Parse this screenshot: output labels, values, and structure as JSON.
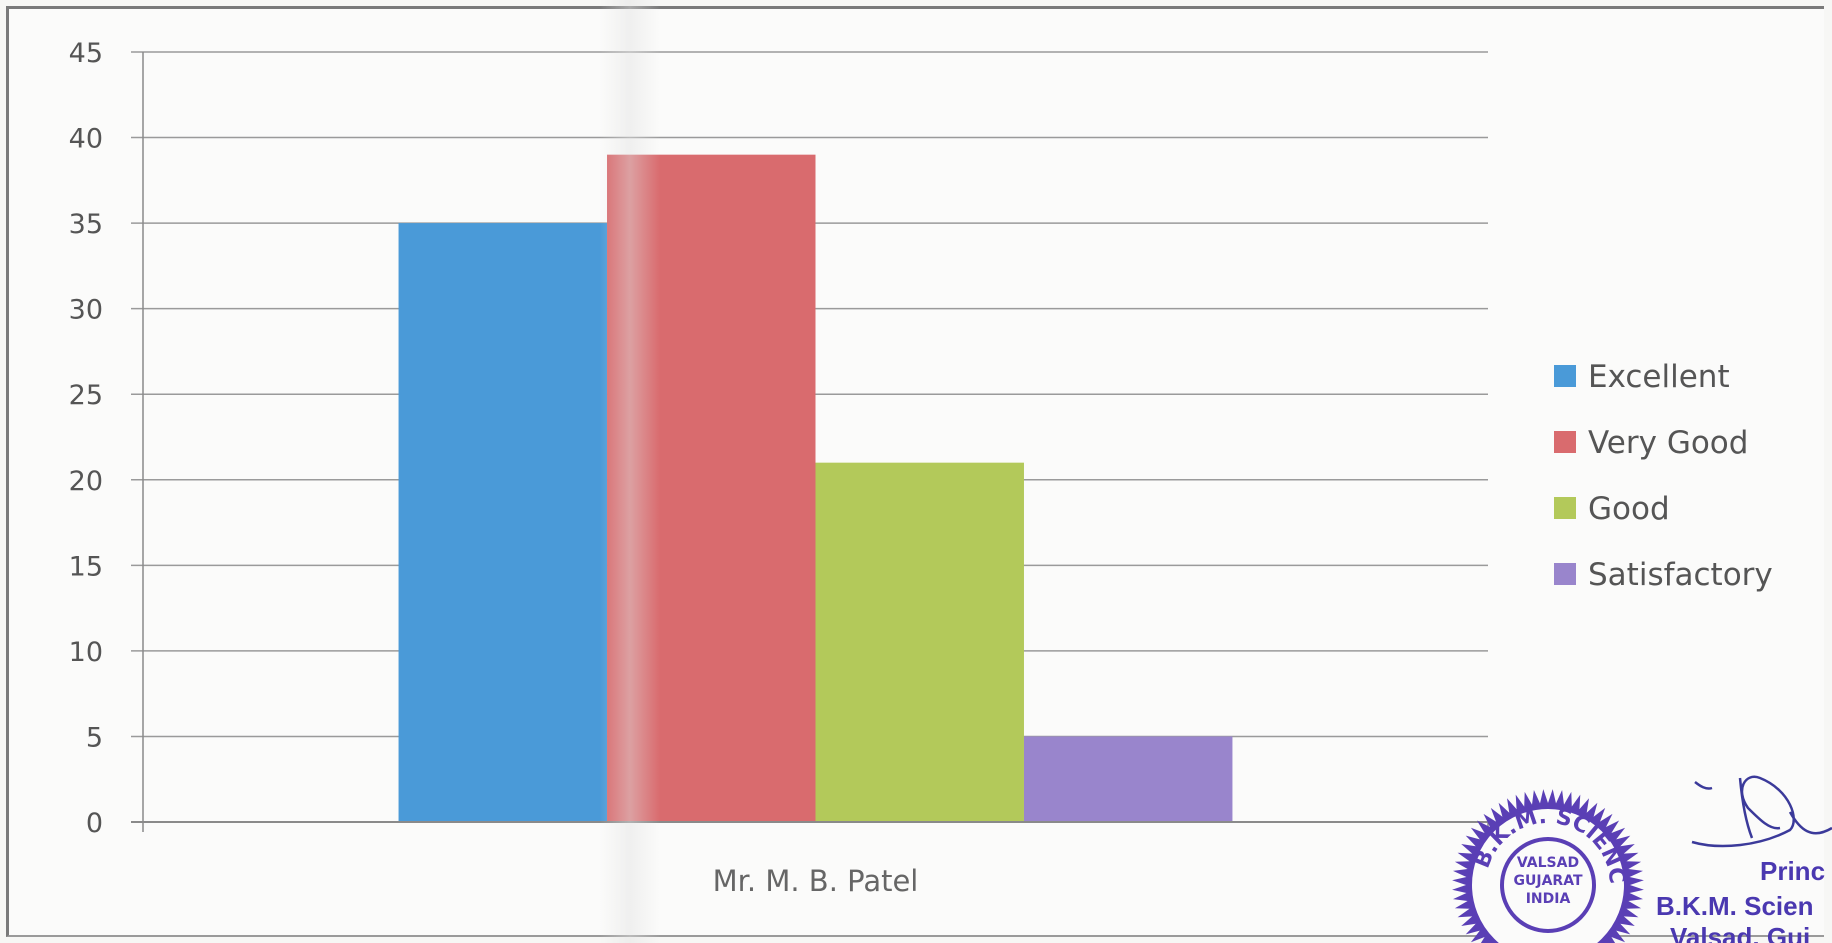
{
  "chart_data": {
    "type": "bar",
    "categories": [
      "Mr. M. B. Patel"
    ],
    "series": [
      {
        "name": "Excellent",
        "values": [
          35
        ],
        "color": "#4a9ad8"
      },
      {
        "name": "Very Good",
        "values": [
          39
        ],
        "color": "#d96b6e"
      },
      {
        "name": "Good",
        "values": [
          21
        ],
        "color": "#b3c95a"
      },
      {
        "name": "Satisfactory",
        "values": [
          5
        ],
        "color": "#9985cc"
      }
    ],
    "yticks": [
      "0",
      "5",
      "10",
      "15",
      "20",
      "25",
      "30",
      "35",
      "40",
      "45"
    ],
    "ylim": [
      0,
      45
    ],
    "grid": true,
    "legend_position": "right",
    "title": "",
    "xlabel": "",
    "ylabel": ""
  },
  "stamp": {
    "seal_ring": "B.K.M. SCIENCE COLLEGE",
    "seal_center": [
      "VALSAD",
      "GUJARAT",
      "INDIA"
    ],
    "line1": "Princ",
    "line2": "B.K.M. Scien",
    "line3": "Valsad, Guj",
    "seal_color": "#5a3fb5"
  }
}
